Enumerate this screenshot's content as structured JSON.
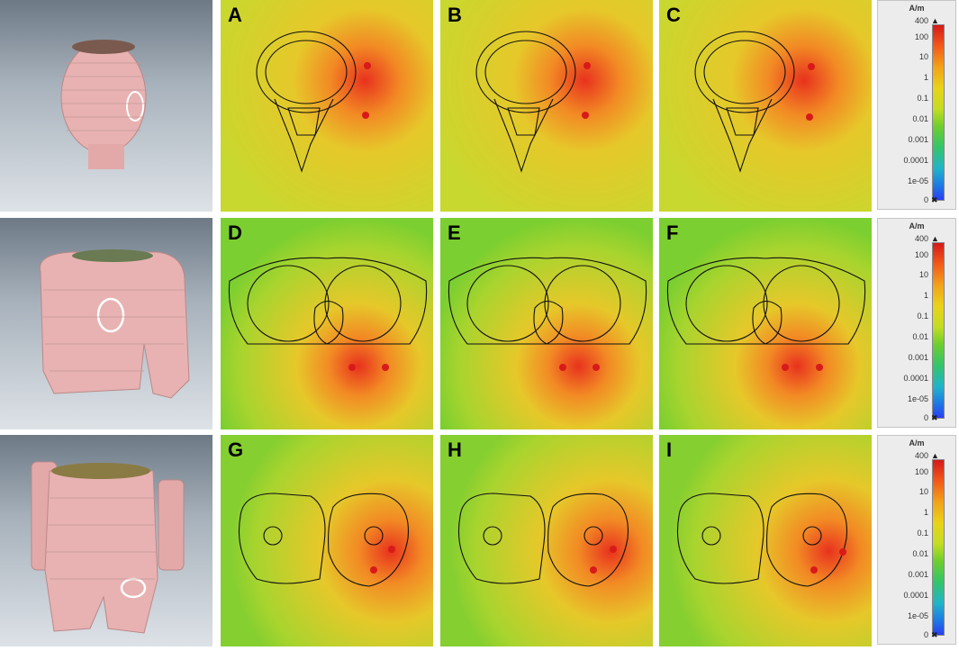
{
  "panels": {
    "row0": [
      "A",
      "B",
      "C"
    ],
    "row1": [
      "D",
      "E",
      "F"
    ],
    "row2": [
      "G",
      "H",
      "I"
    ]
  },
  "colorbar": {
    "unit": "A/m",
    "ticks": [
      "400",
      "100",
      "10",
      "1",
      "0.1",
      "0.01",
      "0.001",
      "0.0001",
      "1e-05",
      "0"
    ],
    "colors": [
      "#d41a1a",
      "#f2a21a",
      "#e9d21a",
      "#6ece2e",
      "#22b4c8",
      "#2a3ef0"
    ]
  },
  "models": {
    "row0": "head-model",
    "row1": "torso-model",
    "row2": "pelvis-model"
  }
}
